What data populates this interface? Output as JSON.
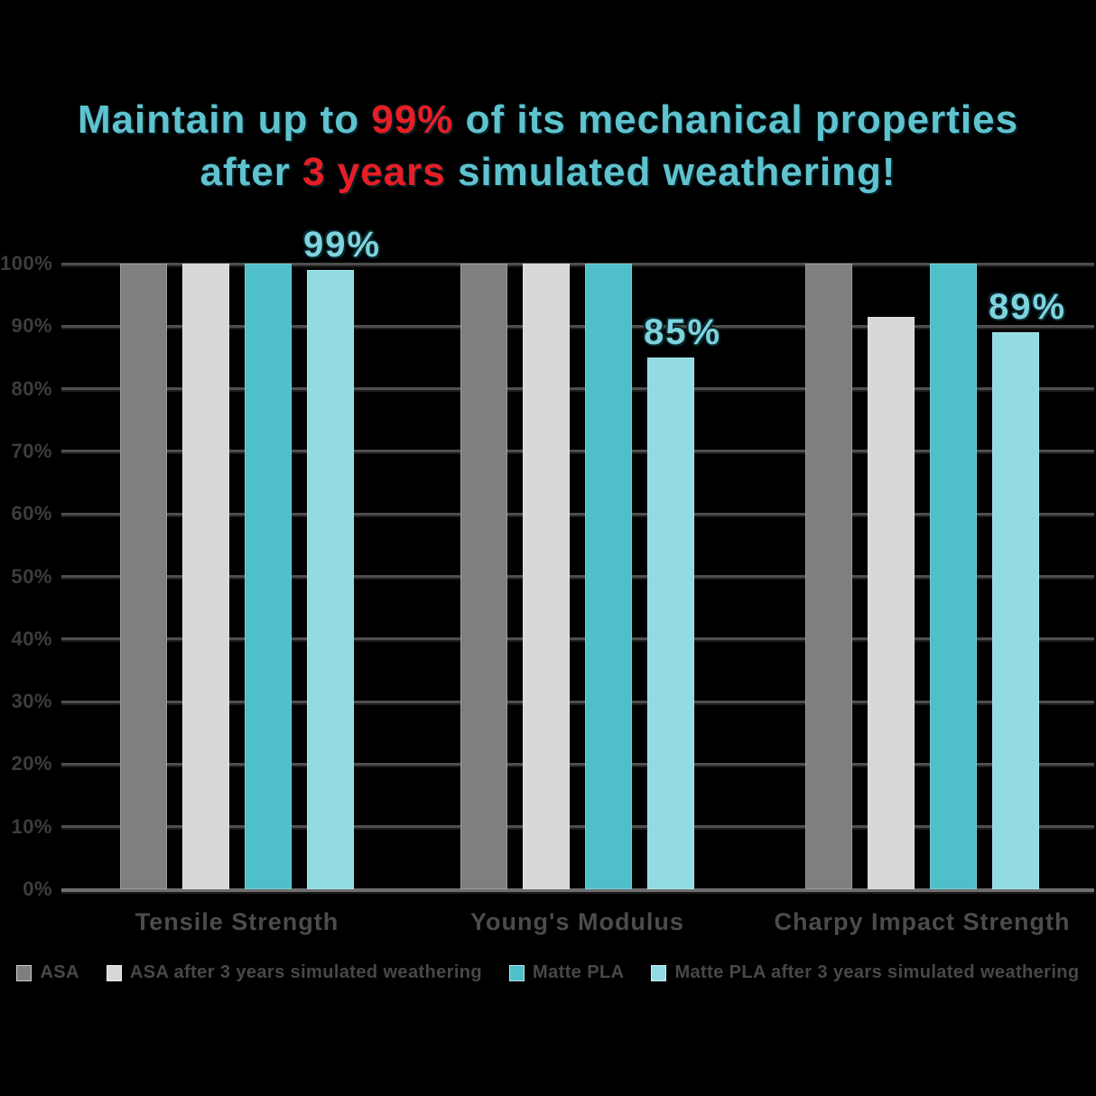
{
  "colors": {
    "background": "#000000",
    "title_teal": "#5fc3ce",
    "title_red": "#e81d25",
    "bar_label_teal": "#7ed3dd",
    "gridline": "#4e4e4e",
    "axis_line": "#6e6e6e",
    "tick_text": "#3d3d3d",
    "category_text": "#4c4c4c",
    "legend_text": "#484848"
  },
  "title": {
    "full_text": "Maintain up to 99% of its mechanical properties after 3 years simulated weathering!",
    "line1": [
      {
        "text": "Maintain up to "
      },
      {
        "text": "99%"
      },
      {
        "text": " of its mechanical properties"
      }
    ],
    "line2": [
      {
        "text": "after "
      },
      {
        "text": "3 years"
      },
      {
        "text": " simulated weathering!"
      }
    ]
  },
  "chart_data": {
    "type": "bar",
    "title": "Maintain up to 99% of its mechanical properties after 3 years simulated weathering!",
    "xlabel": "",
    "ylabel": "",
    "ylim": [
      0,
      100
    ],
    "y_unit": "%",
    "grid": true,
    "legend_position": "bottom",
    "categories": [
      "Tensile Strength",
      "Young's Modulus",
      "Charpy Impact Strength"
    ],
    "y_ticks": [
      "100%",
      "90%",
      "80%",
      "70%",
      "60%",
      "50%",
      "40%",
      "30%",
      "20%",
      "10%",
      "0%"
    ],
    "series": [
      {
        "name": "ASA",
        "color": "#7f7f7f",
        "values": [
          100,
          100,
          100
        ]
      },
      {
        "name": "ASA after 3 years simulated weathering",
        "color": "#d8d8d8",
        "values": [
          100,
          100,
          91.5
        ]
      },
      {
        "name": "Matte PLA",
        "color": "#4fbfca",
        "values": [
          100,
          100,
          100
        ]
      },
      {
        "name": "Matte PLA after 3 years simulated weathering",
        "color": "#92dbe3",
        "values": [
          99,
          85,
          89
        ]
      }
    ],
    "data_labels": [
      {
        "category": 0,
        "series": 3,
        "text": "99%"
      },
      {
        "category": 1,
        "series": 3,
        "text": "85%"
      },
      {
        "category": 2,
        "series": 3,
        "text": "89%"
      }
    ]
  }
}
